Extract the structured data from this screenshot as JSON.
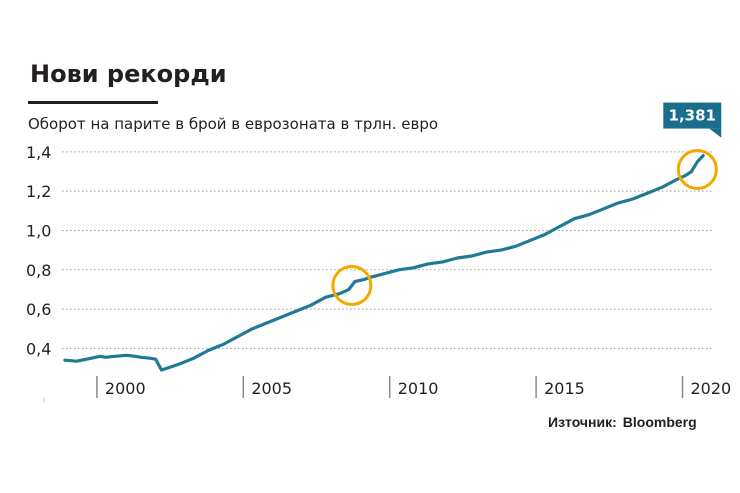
{
  "title": "Нови рекорди",
  "subtitle": "Оборот на парите в брой в еврозоната в трлн. евро",
  "source": {
    "label": "Източник:",
    "name": "Bloomberg"
  },
  "colors": {
    "line": "#1f7a96",
    "highlight": "#f2a900",
    "callout": "#1a6e8c",
    "grid": "#9a9a9a"
  },
  "chart_data": {
    "type": "line",
    "title": "Нови рекорди",
    "ylabel": "Оборот на парите в брой в еврозоната в трлн. евро",
    "xlabel": "",
    "xlim": [
      1998.5,
      2020.7
    ],
    "ylim": [
      0.28,
      1.45
    ],
    "yticks": [
      0.4,
      0.6,
      0.8,
      1.0,
      1.2,
      1.4
    ],
    "ytick_labels": [
      "0,4",
      "0,6",
      "0,8",
      "1,0",
      "1,2",
      "1,4"
    ],
    "xticks": [
      2000,
      2005,
      2010,
      2015,
      2020
    ],
    "xtick_labels": [
      "2000",
      "2005",
      "2010",
      "2015",
      "2020"
    ],
    "grid": true,
    "annotations": [
      {
        "text": "1,381",
        "x": 2020.3,
        "y": 1.381
      }
    ],
    "highlights": [
      {
        "x": 2008.4,
        "y": 0.72
      },
      {
        "x": 2020.2,
        "y": 1.31
      }
    ],
    "series": [
      {
        "x": [
          1998.6,
          1999.0,
          1999.5,
          1999.8,
          2000.0,
          2000.3,
          2000.7,
          2001.0,
          2001.2,
          2001.5,
          2001.7,
          2001.9,
          2002.1,
          2002.5,
          2003.0,
          2003.5,
          2004.0,
          2004.5,
          2005.0,
          2005.5,
          2006.0,
          2006.5,
          2007.0,
          2007.5,
          2008.0,
          2008.3,
          2008.5,
          2008.8,
          2009.0,
          2009.5,
          2010.0,
          2010.5,
          2011.0,
          2011.5,
          2012.0,
          2012.5,
          2013.0,
          2013.5,
          2014.0,
          2014.5,
          2015.0,
          2015.5,
          2016.0,
          2016.5,
          2017.0,
          2017.5,
          2018.0,
          2018.5,
          2019.0,
          2019.5,
          2019.8,
          2020.0,
          2020.2,
          2020.4
        ],
        "values": [
          0.34,
          0.335,
          0.35,
          0.36,
          0.355,
          0.36,
          0.365,
          0.36,
          0.355,
          0.35,
          0.345,
          0.29,
          0.3,
          0.32,
          0.35,
          0.39,
          0.42,
          0.46,
          0.5,
          0.53,
          0.56,
          0.59,
          0.62,
          0.66,
          0.68,
          0.7,
          0.74,
          0.75,
          0.76,
          0.78,
          0.8,
          0.81,
          0.83,
          0.84,
          0.86,
          0.87,
          0.89,
          0.9,
          0.92,
          0.95,
          0.98,
          1.02,
          1.06,
          1.08,
          1.11,
          1.14,
          1.16,
          1.19,
          1.22,
          1.26,
          1.28,
          1.3,
          1.35,
          1.381
        ]
      }
    ]
  }
}
